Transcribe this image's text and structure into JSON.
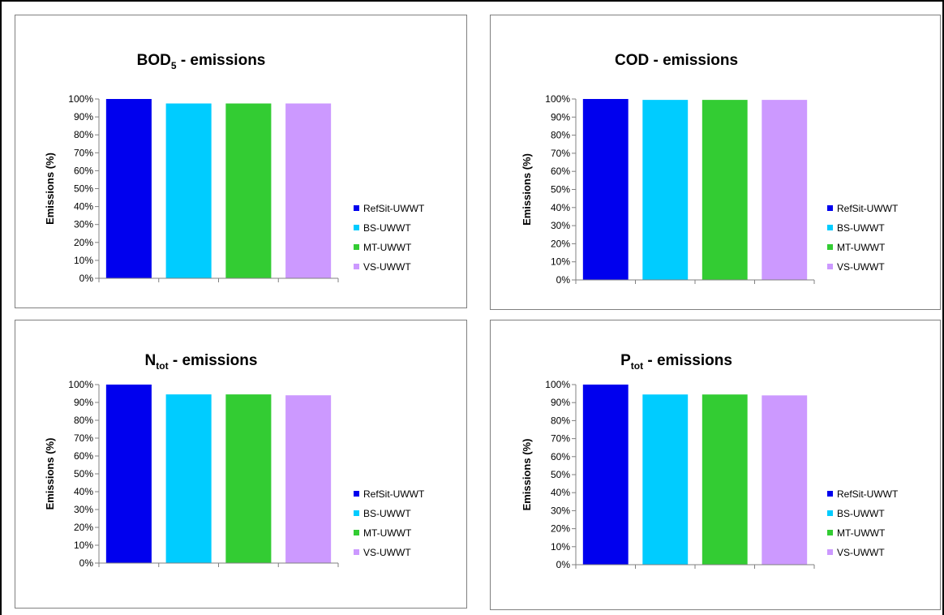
{
  "chart_data": [
    {
      "type": "bar",
      "title": "BOD",
      "title_subscript": "5",
      "title_suffix": " - emissions",
      "ylabel": "Emissions (%)",
      "ylim": [
        0,
        100
      ],
      "yticks": [
        "0%",
        "10%",
        "20%",
        "30%",
        "40%",
        "50%",
        "60%",
        "70%",
        "80%",
        "90%",
        "100%"
      ],
      "categories": [
        "RefSit-UWWT",
        "BS-UWWT",
        "MT-UWWT",
        "VS-UWWT"
      ],
      "values": [
        100,
        97.5,
        97.5,
        97.5
      ],
      "colors": [
        "#0000EE",
        "#00CCFF",
        "#33CC33",
        "#CC99FF"
      ],
      "legend": "right",
      "grid": false
    },
    {
      "type": "bar",
      "title": "COD",
      "title_subscript": "",
      "title_suffix": " - emissions",
      "ylabel": "Emissions (%)",
      "ylim": [
        0,
        100
      ],
      "yticks": [
        "0%",
        "10%",
        "20%",
        "30%",
        "40%",
        "50%",
        "60%",
        "70%",
        "80%",
        "90%",
        "100%"
      ],
      "categories": [
        "RefSit-UWWT",
        "BS-UWWT",
        "MT-UWWT",
        "VS-UWWT"
      ],
      "values": [
        100,
        99.5,
        99.5,
        99.5
      ],
      "colors": [
        "#0000EE",
        "#00CCFF",
        "#33CC33",
        "#CC99FF"
      ],
      "legend": "right",
      "grid": false
    },
    {
      "type": "bar",
      "title": "N",
      "title_subscript": "tot",
      "title_suffix": " - emissions",
      "ylabel": "Emissions (%)",
      "ylim": [
        0,
        100
      ],
      "yticks": [
        "0%",
        "10%",
        "20%",
        "30%",
        "40%",
        "50%",
        "60%",
        "70%",
        "80%",
        "90%",
        "100%"
      ],
      "categories": [
        "RefSit-UWWT",
        "BS-UWWT",
        "MT-UWWT",
        "VS-UWWT"
      ],
      "values": [
        100,
        94.5,
        94.5,
        94
      ],
      "colors": [
        "#0000EE",
        "#00CCFF",
        "#33CC33",
        "#CC99FF"
      ],
      "legend": "right",
      "grid": false
    },
    {
      "type": "bar",
      "title": "P",
      "title_subscript": "tot",
      "title_suffix": " - emissions",
      "ylabel": "Emissions (%)",
      "ylim": [
        0,
        100
      ],
      "yticks": [
        "0%",
        "10%",
        "20%",
        "30%",
        "40%",
        "50%",
        "60%",
        "70%",
        "80%",
        "90%",
        "100%"
      ],
      "categories": [
        "RefSit-UWWT",
        "BS-UWWT",
        "MT-UWWT",
        "VS-UWWT"
      ],
      "values": [
        100,
        94.5,
        94.5,
        94
      ],
      "colors": [
        "#0000EE",
        "#00CCFF",
        "#33CC33",
        "#CC99FF"
      ],
      "legend": "right",
      "grid": false
    }
  ]
}
